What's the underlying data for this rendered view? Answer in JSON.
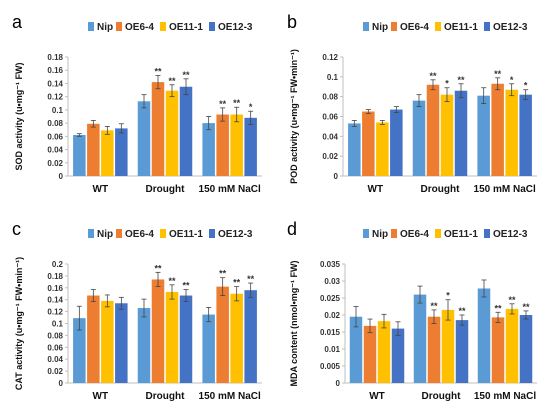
{
  "chart_data": [
    {
      "panel_letter": "a",
      "type": "bar",
      "categories": [
        "WT",
        "Drought",
        "150 mM NaCl"
      ],
      "ylabel": "SOD activity (u•mg⁻¹ FW)",
      "ylim": [
        0,
        0.18
      ],
      "yticks": [
        "0",
        "0.02",
        "0.04",
        "0.06",
        "0.08",
        "0.1",
        "0.12",
        "0.14",
        "0.16",
        "0.18"
      ],
      "legend_position": "top",
      "series": [
        {
          "name": "Nip",
          "color": "#5b9bd5",
          "values": [
            0.062,
            0.113,
            0.08
          ],
          "errors": [
            0.002,
            0.01,
            0.01
          ],
          "marks": [
            "",
            "",
            ""
          ]
        },
        {
          "name": "OE6-4",
          "color": "#ed7d31",
          "values": [
            0.079,
            0.142,
            0.093
          ],
          "errors": [
            0.005,
            0.01,
            0.01
          ],
          "marks": [
            "",
            "**",
            "**"
          ]
        },
        {
          "name": "OE11-1",
          "color": "#ffc000",
          "values": [
            0.069,
            0.129,
            0.093
          ],
          "errors": [
            0.006,
            0.009,
            0.011
          ],
          "marks": [
            "",
            "**",
            "**"
          ]
        },
        {
          "name": "OE12-3",
          "color": "#4472c4",
          "values": [
            0.072,
            0.135,
            0.088
          ],
          "errors": [
            0.007,
            0.012,
            0.01
          ],
          "marks": [
            "",
            "**",
            "*"
          ]
        }
      ]
    },
    {
      "panel_letter": "b",
      "type": "bar",
      "categories": [
        "WT",
        "Drought",
        "150 mM NaCl"
      ],
      "ylabel": "POD activity (u•mg⁻¹ FW•min⁻¹)",
      "ylim": [
        0,
        0.12
      ],
      "yticks": [
        "0",
        "0.02",
        "0.04",
        "0.06",
        "0.08",
        "0.1",
        "0.12"
      ],
      "legend_position": "top",
      "series": [
        {
          "name": "Nip",
          "color": "#5b9bd5",
          "values": [
            0.053,
            0.076,
            0.081
          ],
          "errors": [
            0.003,
            0.006,
            0.008
          ],
          "marks": [
            "",
            "",
            ""
          ]
        },
        {
          "name": "OE6-4",
          "color": "#ed7d31",
          "values": [
            0.065,
            0.092,
            0.093
          ],
          "errors": [
            0.002,
            0.005,
            0.006
          ],
          "marks": [
            "",
            "**",
            "**"
          ]
        },
        {
          "name": "OE11-1",
          "color": "#ffc000",
          "values": [
            0.054,
            0.082,
            0.087
          ],
          "errors": [
            0.002,
            0.007,
            0.006
          ],
          "marks": [
            "",
            "*",
            "*"
          ]
        },
        {
          "name": "OE12-3",
          "color": "#4472c4",
          "values": [
            0.067,
            0.086,
            0.082
          ],
          "errors": [
            0.003,
            0.007,
            0.005
          ],
          "marks": [
            "",
            "**",
            "*"
          ]
        }
      ]
    },
    {
      "panel_letter": "c",
      "type": "bar",
      "categories": [
        "WT",
        "Drought",
        "150 mM NaCl"
      ],
      "ylabel": "CAT activity (u•mg⁻¹ FW•min⁻¹)",
      "ylim": [
        0,
        0.2
      ],
      "yticks": [
        "0",
        "0.02",
        "0.04",
        "0.06",
        "0.08",
        "0.1",
        "0.12",
        "0.14",
        "0.16",
        "0.18",
        "0.2"
      ],
      "legend_position": "top",
      "series": [
        {
          "name": "Nip",
          "color": "#5b9bd5",
          "values": [
            0.109,
            0.126,
            0.115
          ],
          "errors": [
            0.02,
            0.015,
            0.012
          ],
          "marks": [
            "",
            "",
            ""
          ]
        },
        {
          "name": "OE6-4",
          "color": "#ed7d31",
          "values": [
            0.147,
            0.174,
            0.162
          ],
          "errors": [
            0.01,
            0.012,
            0.015
          ],
          "marks": [
            "",
            "**",
            "**"
          ]
        },
        {
          "name": "OE11-1",
          "color": "#ffc000",
          "values": [
            0.138,
            0.153,
            0.15
          ],
          "errors": [
            0.01,
            0.012,
            0.012
          ],
          "marks": [
            "",
            "**",
            "**"
          ]
        },
        {
          "name": "OE12-3",
          "color": "#4472c4",
          "values": [
            0.134,
            0.147,
            0.156
          ],
          "errors": [
            0.01,
            0.01,
            0.012
          ],
          "marks": [
            "",
            "**",
            "**"
          ]
        }
      ]
    },
    {
      "panel_letter": "d",
      "type": "bar",
      "categories": [
        "WT",
        "Drought",
        "150 mM NaCl"
      ],
      "ylabel": "MDA content (nmol•mg⁻¹ FW)",
      "ylim": [
        0,
        0.035
      ],
      "yticks": [
        "0",
        "0.005",
        "0.01",
        "0.015",
        "0.02",
        "0.025",
        "0.03",
        "0.035"
      ],
      "legend_position": "top",
      "series": [
        {
          "name": "Nip",
          "color": "#5b9bd5",
          "values": [
            0.0195,
            0.026,
            0.0278
          ],
          "errors": [
            0.003,
            0.0025,
            0.0025
          ],
          "marks": [
            "",
            "",
            ""
          ]
        },
        {
          "name": "OE6-4",
          "color": "#ed7d31",
          "values": [
            0.0168,
            0.0195,
            0.0193
          ],
          "errors": [
            0.002,
            0.002,
            0.0015
          ],
          "marks": [
            "",
            "**",
            "**"
          ]
        },
        {
          "name": "OE11-1",
          "color": "#ffc000",
          "values": [
            0.0182,
            0.0215,
            0.0218
          ],
          "errors": [
            0.002,
            0.003,
            0.0015
          ],
          "marks": [
            "",
            "*",
            "**"
          ]
        },
        {
          "name": "OE12-3",
          "color": "#4472c4",
          "values": [
            0.016,
            0.0185,
            0.02
          ],
          "errors": [
            0.002,
            0.0015,
            0.0012
          ],
          "marks": [
            "",
            "**",
            "**"
          ]
        }
      ]
    }
  ]
}
